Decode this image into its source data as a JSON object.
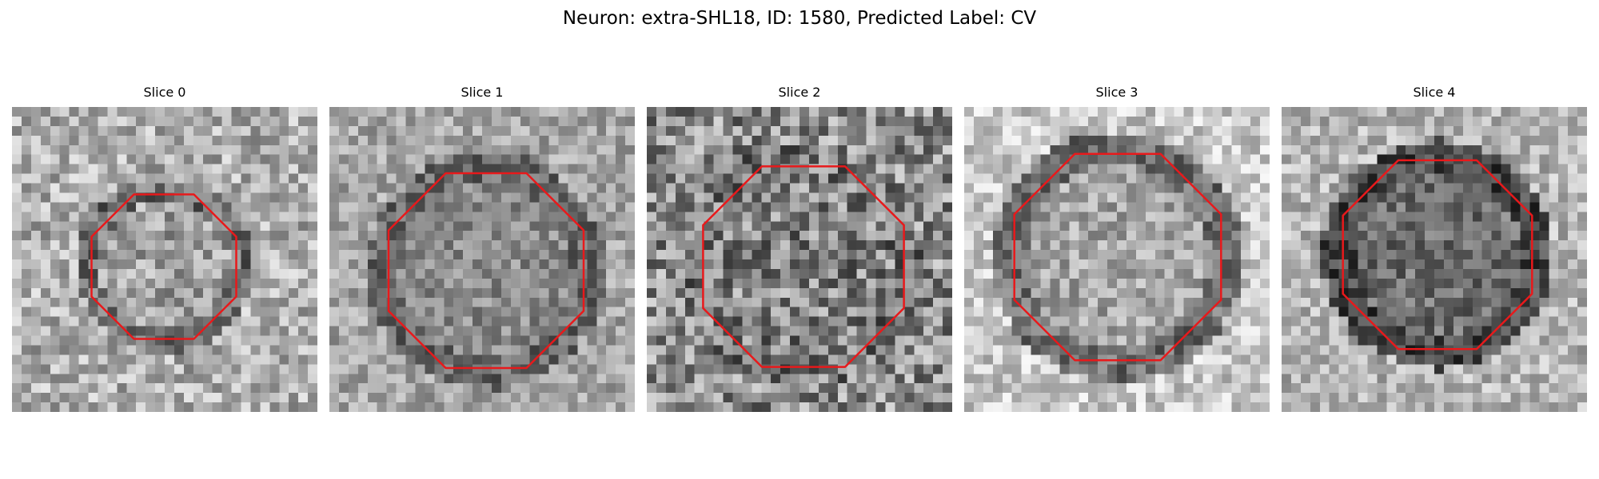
{
  "figure": {
    "title": "Neuron: extra-SHL18, ID: 1580, Predicted Label: CV"
  },
  "panels": [
    {
      "title": "Slice 0",
      "seed": 11,
      "base_gray": 175,
      "ring_gray": 110,
      "inner_gray": 160,
      "contrast": 70,
      "outline_color": "#e8191b"
    },
    {
      "title": "Slice 1",
      "seed": 23,
      "base_gray": 165,
      "ring_gray": 105,
      "inner_gray": 140,
      "contrast": 55,
      "outline_color": "#e8191b"
    },
    {
      "title": "Slice 2",
      "seed": 37,
      "base_gray": 140,
      "ring_gray": 120,
      "inner_gray": 130,
      "contrast": 95,
      "outline_color": "#e8191b"
    },
    {
      "title": "Slice 3",
      "seed": 41,
      "base_gray": 200,
      "ring_gray": 110,
      "inner_gray": 165,
      "contrast": 60,
      "outline_color": "#e8191b"
    },
    {
      "title": "Slice 4",
      "seed": 53,
      "base_gray": 180,
      "ring_gray": 70,
      "inner_gray": 110,
      "contrast": 60,
      "outline_color": "#e8191b"
    }
  ]
}
